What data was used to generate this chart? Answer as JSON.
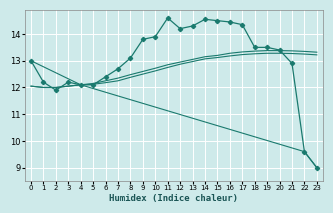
{
  "title": "",
  "xlabel": "Humidex (Indice chaleur)",
  "ylabel": "",
  "background_color": "#ceeaea",
  "grid_color": "#b8d8d8",
  "line_color": "#1a7a6e",
  "xlim": [
    -0.5,
    23.5
  ],
  "ylim": [
    8.5,
    14.9
  ],
  "xticks": [
    0,
    1,
    2,
    3,
    4,
    5,
    6,
    7,
    8,
    9,
    10,
    11,
    12,
    13,
    14,
    15,
    16,
    17,
    18,
    19,
    20,
    21,
    22,
    23
  ],
  "yticks": [
    9,
    10,
    11,
    12,
    13,
    14
  ],
  "lines": [
    {
      "x": [
        0,
        1,
        2,
        3,
        4,
        5,
        6,
        7,
        8,
        9,
        10,
        11,
        12,
        13,
        14,
        15,
        16,
        17,
        18,
        19,
        20,
        21,
        22,
        23
      ],
      "y": [
        13.0,
        12.2,
        11.9,
        12.2,
        12.1,
        12.1,
        12.4,
        12.7,
        13.1,
        13.8,
        13.9,
        14.6,
        14.2,
        14.3,
        14.55,
        14.5,
        14.45,
        14.35,
        13.5,
        13.5,
        13.4,
        12.9,
        9.6,
        9.0
      ],
      "marker": true
    },
    {
      "x": [
        0,
        1,
        2,
        3,
        4,
        5,
        6,
        7,
        8,
        9,
        10,
        11,
        12,
        13,
        14,
        15,
        16,
        17,
        18,
        19,
        20,
        21,
        22,
        23
      ],
      "y": [
        12.05,
        12.0,
        12.0,
        12.05,
        12.1,
        12.15,
        12.25,
        12.35,
        12.48,
        12.6,
        12.72,
        12.85,
        12.95,
        13.05,
        13.15,
        13.2,
        13.28,
        13.33,
        13.36,
        13.38,
        13.38,
        13.37,
        13.35,
        13.32
      ],
      "marker": false
    },
    {
      "x": [
        0,
        1,
        2,
        3,
        4,
        5,
        6,
        7,
        8,
        9,
        10,
        11,
        12,
        13,
        14,
        15,
        16,
        17,
        18,
        19,
        20,
        21,
        22,
        23
      ],
      "y": [
        12.05,
        12.0,
        12.0,
        12.05,
        12.1,
        12.12,
        12.18,
        12.25,
        12.38,
        12.5,
        12.62,
        12.75,
        12.87,
        12.97,
        13.07,
        13.12,
        13.18,
        13.23,
        13.26,
        13.28,
        13.28,
        13.27,
        13.25,
        13.22
      ],
      "marker": false
    },
    {
      "x": [
        0,
        4,
        22,
        23
      ],
      "y": [
        13.0,
        12.1,
        9.6,
        9.0
      ],
      "marker": false
    }
  ]
}
